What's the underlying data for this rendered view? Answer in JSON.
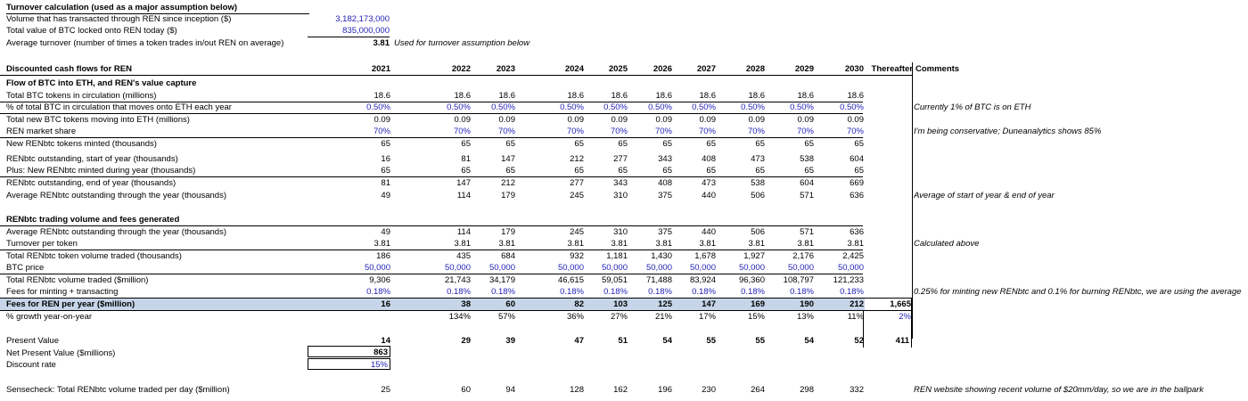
{
  "turnover": {
    "title": "Turnover calculation (used as a major assumption below)",
    "rows": [
      {
        "label": "Volume that has transacted through REN since inception ($)",
        "value": "3,182,173,000"
      },
      {
        "label": "Total value of BTC locked onto REN today ($)",
        "value": "835,000,000"
      },
      {
        "label": "Average turnover (number of times a token trades in/out REN on average)",
        "value": "3.81",
        "note": "Used for turnover assumption below"
      }
    ]
  },
  "dcf": {
    "title": "Discounted cash flows for REN",
    "years": [
      "2021",
      "2022",
      "2023",
      "2024",
      "2025",
      "2026",
      "2027",
      "2028",
      "2029",
      "2030",
      "Thereafter"
    ],
    "comments_header": "Comments"
  },
  "section1": {
    "title": "Flow of BTC into ETH, and REN's value capture",
    "rows": [
      {
        "label": "Total BTC tokens in circulation (millions)",
        "values": [
          "18.6",
          "18.6",
          "18.6",
          "18.6",
          "18.6",
          "18.6",
          "18.6",
          "18.6",
          "18.6",
          "18.6"
        ],
        "comment": ""
      },
      {
        "label": "% of total BTC in circulation that moves onto ETH each year",
        "values": [
          "0.50%",
          "0.50%",
          "0.50%",
          "0.50%",
          "0.50%",
          "0.50%",
          "0.50%",
          "0.50%",
          "0.50%",
          "0.50%"
        ],
        "comment": "Currently 1% of BTC is on ETH"
      },
      {
        "label": "Total new BTC tokens moving into ETH (millions)",
        "values": [
          "0.09",
          "0.09",
          "0.09",
          "0.09",
          "0.09",
          "0.09",
          "0.09",
          "0.09",
          "0.09",
          "0.09"
        ],
        "comment": ""
      },
      {
        "label": "REN market share",
        "values": [
          "70%",
          "70%",
          "70%",
          "70%",
          "70%",
          "70%",
          "70%",
          "70%",
          "70%",
          "70%"
        ],
        "comment": "I'm being conservative; Duneanalytics shows 85%"
      },
      {
        "label": "New RENbtc tokens minted (thousands)",
        "values": [
          "65",
          "65",
          "65",
          "65",
          "65",
          "65",
          "65",
          "65",
          "65",
          "65"
        ],
        "comment": ""
      },
      {
        "label": "RENbtc outstanding, start of year (thousands)",
        "values": [
          "16",
          "81",
          "147",
          "212",
          "277",
          "343",
          "408",
          "473",
          "538",
          "604"
        ],
        "comment": ""
      },
      {
        "label": "Plus: New RENbtc minted during year (thousands)",
        "values": [
          "65",
          "65",
          "65",
          "65",
          "65",
          "65",
          "65",
          "65",
          "65",
          "65"
        ],
        "comment": ""
      },
      {
        "label": "RENbtc outstanding, end of year (thousands)",
        "values": [
          "81",
          "147",
          "212",
          "277",
          "343",
          "408",
          "473",
          "538",
          "604",
          "669"
        ],
        "comment": ""
      },
      {
        "label": "Average RENbtc outstanding through the year (thousands)",
        "values": [
          "49",
          "114",
          "179",
          "245",
          "310",
          "375",
          "440",
          "506",
          "571",
          "636"
        ],
        "comment": "Average of start of year & end of year"
      }
    ]
  },
  "section2": {
    "title": "RENbtc trading volume and fees generated",
    "rows": [
      {
        "label": "Average RENbtc outstanding through the year (thousands)",
        "values": [
          "49",
          "114",
          "179",
          "245",
          "310",
          "375",
          "440",
          "506",
          "571",
          "636"
        ],
        "comment": ""
      },
      {
        "label": "Turnover per token",
        "values": [
          "3.81",
          "3.81",
          "3.81",
          "3.81",
          "3.81",
          "3.81",
          "3.81",
          "3.81",
          "3.81",
          "3.81"
        ],
        "comment": "Calculated above"
      },
      {
        "label": "Total RENbtc token volume traded (thousands)",
        "values": [
          "186",
          "435",
          "684",
          "932",
          "1,181",
          "1,430",
          "1,678",
          "1,927",
          "2,176",
          "2,425"
        ],
        "comment": ""
      },
      {
        "label": "BTC price",
        "values": [
          "50,000",
          "50,000",
          "50,000",
          "50,000",
          "50,000",
          "50,000",
          "50,000",
          "50,000",
          "50,000",
          "50,000"
        ],
        "comment": ""
      },
      {
        "label": "Total RENbtc volume traded ($million)",
        "values": [
          "9,306",
          "21,743",
          "34,179",
          "46,615",
          "59,051",
          "71,488",
          "83,924",
          "96,360",
          "108,797",
          "121,233"
        ],
        "comment": ""
      },
      {
        "label": "Fees for minting + transacting",
        "values": [
          "0.18%",
          "0.18%",
          "0.18%",
          "0.18%",
          "0.18%",
          "0.18%",
          "0.18%",
          "0.18%",
          "0.18%",
          "0.18%"
        ],
        "comment": "0.25% for minting new RENbtc and 0.1% for burning RENbtc, we are using the average"
      },
      {
        "label": "Fees for REN per year ($million)",
        "values": [
          "16",
          "38",
          "60",
          "82",
          "103",
          "125",
          "147",
          "169",
          "190",
          "212",
          "1,665"
        ],
        "comment": ""
      },
      {
        "label": "% growth year-on-year",
        "values": [
          "",
          "134%",
          "57%",
          "36%",
          "27%",
          "21%",
          "17%",
          "15%",
          "13%",
          "11%",
          "2%"
        ],
        "comment": ""
      }
    ]
  },
  "valuation": {
    "present_value": {
      "label": "Present Value",
      "values": [
        "14",
        "29",
        "39",
        "47",
        "51",
        "54",
        "55",
        "55",
        "54",
        "52",
        "411"
      ]
    },
    "npv": {
      "label": "Net Present Value ($millions)",
      "value": "863"
    },
    "discount": {
      "label": "Discount rate",
      "value": "15%"
    },
    "sensecheck": {
      "label": "Sensecheck: Total RENbtc volume traded per day ($million)",
      "values": [
        "25",
        "60",
        "94",
        "128",
        "162",
        "196",
        "230",
        "264",
        "298",
        "332"
      ],
      "comment": "REN website showing recent volume of $20mm/day, so we are in the ballpark"
    }
  },
  "colors": {
    "input_blue": "#1f1fb4",
    "highlight": "#c6d5e8"
  }
}
